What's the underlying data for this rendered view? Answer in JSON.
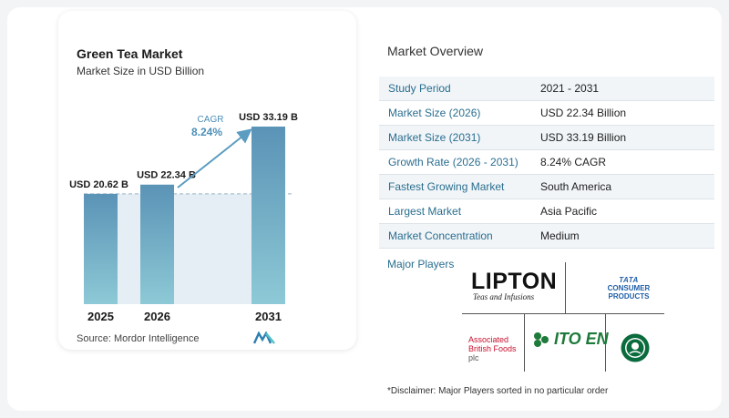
{
  "chart_data": {
    "type": "bar",
    "title": "Green Tea Market",
    "subtitle": "Market Size in USD Billion",
    "categories": [
      "2025",
      "2026",
      "2031"
    ],
    "values": [
      20.62,
      22.34,
      33.19
    ],
    "value_labels": [
      "USD 20.62 B",
      "USD 22.34 B",
      "USD 33.19 B"
    ],
    "cagr_label": "CAGR",
    "cagr_value": "8.24%",
    "ylim": [
      0,
      35
    ],
    "colors": {
      "bar_top": "#5a93b6",
      "bar_bottom": "#8dc9d6",
      "shade": "#e4eef4",
      "arrow": "#5b9cc0",
      "cagr": "#4a8fb8"
    }
  },
  "source": {
    "label": "Source:",
    "value": "Mordor Intelligence"
  },
  "overview": {
    "title": "Market Overview",
    "rows": [
      {
        "key": "Study Period",
        "value": "2021 - 2031"
      },
      {
        "key": "Market Size (2026)",
        "value": "USD 22.34 Billion"
      },
      {
        "key": "Market Size (2031)",
        "value": "USD 33.19 Billion"
      },
      {
        "key": "Growth Rate (2026 - 2031)",
        "value": "8.24% CAGR"
      },
      {
        "key": "Fastest Growing Market",
        "value": "South America"
      },
      {
        "key": "Largest Market",
        "value": "Asia Pacific"
      },
      {
        "key": "Market Concentration",
        "value": "Medium"
      }
    ]
  },
  "players": {
    "title": "Major Players",
    "lipton": {
      "main": "LIPTON",
      "sub": "Teas and Infusions"
    },
    "tata": {
      "line1": "TATA",
      "line2": "CONSUMER",
      "line3": "PRODUCTS"
    },
    "abf": {
      "line1": "Associated",
      "line2": "British Foods",
      "line3": "plc"
    },
    "itoen": {
      "name": "ITO EN"
    },
    "starbucks": {
      "icon": "starbucks-logo"
    }
  },
  "disclaimer": "*Disclaimer: Major Players sorted in no particular order"
}
